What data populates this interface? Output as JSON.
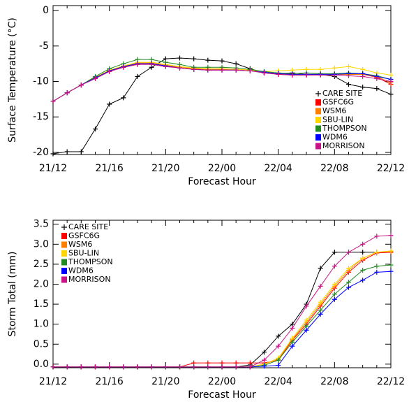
{
  "chart_data": [
    {
      "type": "line",
      "y_label": "Surface Temperature (°C)",
      "x_label": "Forecast Hour",
      "legend": "lower right",
      "categories": [
        "21/12",
        null,
        null,
        null,
        "21/16",
        null,
        null,
        null,
        "21/20",
        null,
        null,
        null,
        "22/00",
        null,
        null,
        null,
        "22/04",
        null,
        null,
        null,
        "22/08",
        null,
        null,
        null,
        "22/12"
      ],
      "ylim": [
        -20.3,
        0.7
      ],
      "yticks": [
        0,
        -5,
        -10,
        -15,
        -20
      ],
      "series": [
        {
          "name": "CARE SITE",
          "color": "#000000",
          "values": [
            -20.2,
            -19.9,
            -19.9,
            -16.7,
            -13.2,
            -12.3,
            -9.3,
            -8.0,
            -6.8,
            -6.7,
            -6.8,
            -7.0,
            -7.1,
            -7.5,
            -8.2,
            -8.8,
            -8.9,
            -8.8,
            -9.0,
            -9.0,
            -9.3,
            -10.4,
            -10.8,
            -11.0,
            -11.8
          ]
        },
        {
          "name": "GSFC6G",
          "color": "#ff0000",
          "values": [
            -12.8,
            -11.6,
            -10.5,
            -9.5,
            -8.6,
            -8.0,
            -7.6,
            -7.5,
            -7.8,
            -8.0,
            -8.3,
            -8.3,
            -8.3,
            -8.3,
            -8.4,
            -8.7,
            -9.0,
            -9.1,
            -9.1,
            -9.0,
            -9.0,
            -9.0,
            -9.0,
            -9.4,
            -10.4
          ]
        },
        {
          "name": "WSM6",
          "color": "#ff8000",
          "values": [
            -12.8,
            -11.6,
            -10.5,
            -9.5,
            -8.5,
            -7.9,
            -7.4,
            -7.4,
            -7.7,
            -8.0,
            -8.2,
            -8.3,
            -8.3,
            -8.3,
            -8.4,
            -8.7,
            -8.9,
            -9.0,
            -9.0,
            -9.0,
            -9.0,
            -9.0,
            -9.0,
            -9.3,
            -10.2
          ]
        },
        {
          "name": "SBU-LIN",
          "color": "#ffd700",
          "values": [
            -12.8,
            -11.6,
            -10.5,
            -9.4,
            -8.4,
            -7.8,
            -7.3,
            -7.3,
            -7.6,
            -7.9,
            -8.1,
            -8.2,
            -8.2,
            -8.3,
            -8.4,
            -8.6,
            -8.5,
            -8.4,
            -8.3,
            -8.3,
            -8.1,
            -7.9,
            -8.3,
            -8.8,
            -9.1
          ]
        },
        {
          "name": "THOMPSON",
          "color": "#228b22",
          "values": [
            -12.8,
            -11.6,
            -10.5,
            -9.3,
            -8.2,
            -7.5,
            -6.9,
            -6.9,
            -7.3,
            -7.6,
            -8.0,
            -8.0,
            -8.0,
            -8.1,
            -8.3,
            -8.6,
            -8.8,
            -8.9,
            -8.8,
            -8.9,
            -8.9,
            -8.8,
            -8.9,
            -9.2,
            -9.7
          ]
        },
        {
          "name": "WDM6",
          "color": "#0000ff",
          "values": [
            -12.8,
            -11.6,
            -10.5,
            -9.5,
            -8.5,
            -7.9,
            -7.5,
            -7.5,
            -7.8,
            -8.1,
            -8.3,
            -8.4,
            -8.4,
            -8.4,
            -8.5,
            -8.7,
            -8.9,
            -9.0,
            -9.0,
            -9.0,
            -9.0,
            -8.9,
            -8.9,
            -9.3,
            -9.7
          ]
        },
        {
          "name": "MORRISON",
          "color": "#c71585",
          "values": [
            -12.8,
            -11.6,
            -10.5,
            -9.6,
            -8.6,
            -8.0,
            -7.6,
            -7.6,
            -7.9,
            -8.1,
            -8.3,
            -8.4,
            -8.4,
            -8.4,
            -8.5,
            -8.8,
            -9.0,
            -9.1,
            -9.1,
            -9.1,
            -9.1,
            -9.2,
            -9.3,
            -9.6,
            -10.0
          ]
        }
      ]
    },
    {
      "type": "line",
      "y_label": "Storm Total (mm)",
      "x_label": "Forecast Hour",
      "legend": "upper left",
      "categories": [
        "21/12",
        null,
        null,
        null,
        "21/16",
        null,
        null,
        null,
        "21/20",
        null,
        null,
        null,
        "22/00",
        null,
        null,
        null,
        "22/04",
        null,
        null,
        null,
        "22/08",
        null,
        null,
        null,
        "22/12"
      ],
      "ylim": [
        -0.09,
        3.6
      ],
      "yticks": [
        {
          "value": 0,
          "label": "0.0"
        },
        0.5,
        {
          "value": 1,
          "label": "1.0"
        },
        1.5,
        {
          "value": 2,
          "label": "2.0"
        },
        2.5,
        {
          "value": 3,
          "label": "3.0"
        },
        3.5
      ],
      "series": [
        {
          "name": "CARE SITE",
          "color": "#000000",
          "values": [
            -0.07,
            -0.07,
            -0.07,
            -0.07,
            -0.07,
            -0.07,
            -0.07,
            -0.07,
            -0.07,
            -0.07,
            -0.07,
            -0.07,
            -0.07,
            -0.07,
            -0.02,
            0.3,
            0.7,
            1.0,
            1.5,
            2.4,
            2.8,
            2.8,
            2.8,
            2.8,
            2.8
          ]
        },
        {
          "name": "GSFC6G",
          "color": "#ff0000",
          "values": [
            -0.07,
            -0.07,
            -0.07,
            -0.07,
            -0.07,
            -0.07,
            -0.07,
            -0.07,
            -0.07,
            -0.07,
            0.03,
            0.03,
            0.03,
            0.03,
            0.03,
            0.03,
            0.1,
            0.6,
            1.0,
            1.45,
            1.9,
            2.3,
            2.6,
            2.78,
            2.8
          ]
        },
        {
          "name": "WSM6",
          "color": "#ff8000",
          "values": [
            -0.07,
            -0.07,
            -0.07,
            -0.07,
            -0.07,
            -0.07,
            -0.07,
            -0.07,
            -0.07,
            -0.07,
            -0.07,
            -0.07,
            -0.07,
            -0.07,
            -0.07,
            0.0,
            0.12,
            0.62,
            1.05,
            1.5,
            1.95,
            2.35,
            2.65,
            2.8,
            2.82
          ]
        },
        {
          "name": "SBU-LIN",
          "color": "#ffd700",
          "values": [
            -0.07,
            -0.07,
            -0.07,
            -0.07,
            -0.07,
            -0.07,
            -0.07,
            -0.07,
            -0.07,
            -0.07,
            -0.07,
            -0.07,
            -0.07,
            -0.07,
            -0.07,
            0.0,
            0.15,
            0.65,
            1.1,
            1.55,
            2.0,
            2.4,
            2.65,
            2.8,
            2.83
          ]
        },
        {
          "name": "THOMPSON",
          "color": "#228b22",
          "values": [
            -0.07,
            -0.07,
            -0.07,
            -0.07,
            -0.07,
            -0.07,
            -0.07,
            -0.07,
            -0.07,
            -0.07,
            -0.07,
            -0.07,
            -0.07,
            -0.07,
            -0.07,
            -0.03,
            0.1,
            0.55,
            0.95,
            1.35,
            1.75,
            2.05,
            2.35,
            2.45,
            2.48
          ]
        },
        {
          "name": "WDM6",
          "color": "#0000ff",
          "values": [
            -0.07,
            -0.07,
            -0.07,
            -0.07,
            -0.07,
            -0.07,
            -0.07,
            -0.07,
            -0.07,
            -0.07,
            -0.07,
            -0.07,
            -0.07,
            -0.07,
            -0.07,
            -0.05,
            -0.03,
            0.45,
            0.85,
            1.25,
            1.62,
            1.92,
            2.1,
            2.3,
            2.32
          ]
        },
        {
          "name": "MORRISON",
          "color": "#c71585",
          "values": [
            -0.07,
            -0.07,
            -0.07,
            -0.07,
            -0.07,
            -0.07,
            -0.07,
            -0.07,
            -0.07,
            -0.07,
            -0.07,
            -0.07,
            -0.07,
            -0.07,
            -0.07,
            0.1,
            0.45,
            0.9,
            1.45,
            1.95,
            2.45,
            2.8,
            3.0,
            3.2,
            3.22
          ]
        }
      ]
    }
  ]
}
